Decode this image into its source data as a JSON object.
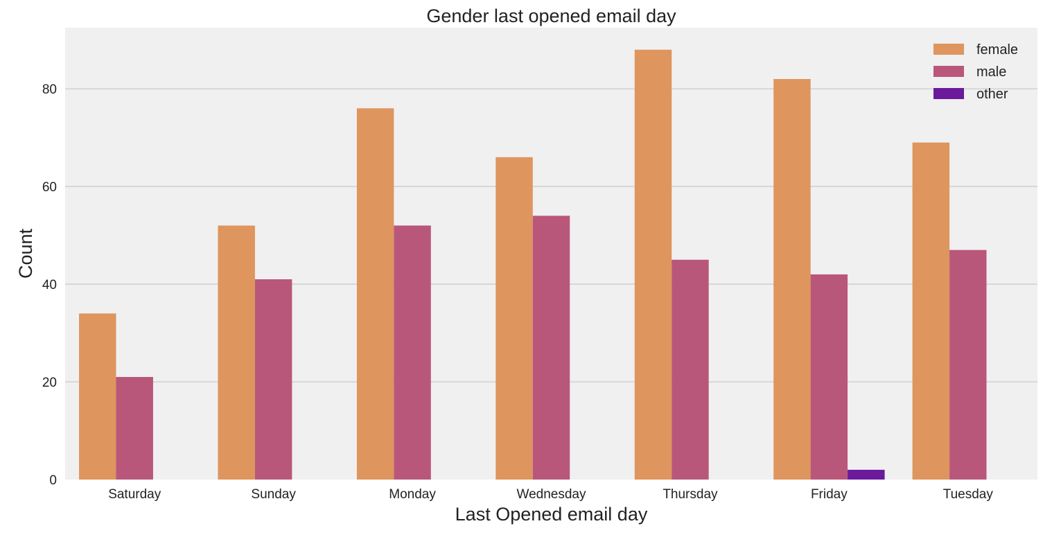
{
  "chart_data": {
    "type": "bar",
    "title": "Gender last opened email day",
    "xlabel": "Last Opened email day",
    "ylabel": "Count",
    "categories": [
      "Saturday",
      "Sunday",
      "Monday",
      "Wednesday",
      "Thursday",
      "Friday",
      "Tuesday"
    ],
    "series": [
      {
        "name": "female",
        "color": "#DE955E",
        "values": [
          34,
          52,
          76,
          66,
          88,
          82,
          69
        ]
      },
      {
        "name": "male",
        "color": "#B9577B",
        "values": [
          21,
          41,
          52,
          54,
          45,
          42,
          47
        ]
      },
      {
        "name": "other",
        "color": "#6A1A9A",
        "values": [
          0,
          0,
          0,
          0,
          0,
          2,
          0
        ]
      }
    ],
    "ylim": [
      0,
      92.5
    ],
    "yticks": [
      0,
      20,
      40,
      60,
      80
    ],
    "grid": true,
    "legend_position": "top-right",
    "background_color": "#F0F0F0",
    "grid_color": "#CBCBCB"
  }
}
